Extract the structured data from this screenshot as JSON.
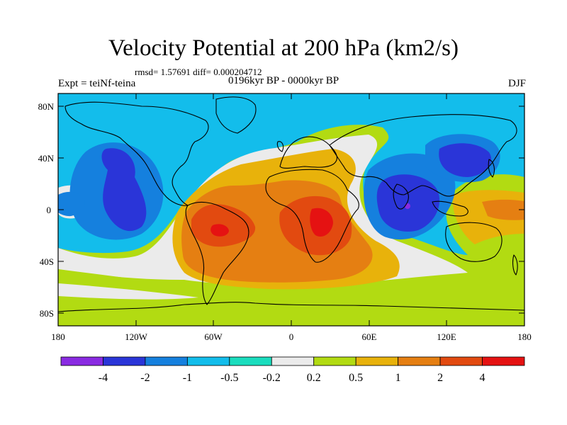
{
  "title": "Velocity Potential at 200 hPa (km2/s)",
  "stats": "rmsd= 1.57691 diff= 0.000204712",
  "experiment": "Expt = teiNf-teina",
  "period": "0196kyr BP - 0000kyr BP",
  "season": "DJF",
  "axes": {
    "lat_labels": [
      "80N",
      "40N",
      "0",
      "40S",
      "80S"
    ],
    "lon_labels": [
      "180",
      "120W",
      "60W",
      "0",
      "60E",
      "120E",
      "180"
    ]
  },
  "colorbar": {
    "labels": [
      "-4",
      "-2",
      "-1",
      "-0.5",
      "-0.2",
      "0.2",
      "0.5",
      "1",
      "2",
      "4"
    ],
    "colors": [
      "#8A2BE2",
      "#2A35D8",
      "#1580DE",
      "#13BDEB",
      "#1ADDBE",
      "#EBEBEB",
      "#B2DB12",
      "#E8B20B",
      "#E57F12",
      "#E24A10",
      "#E51212"
    ]
  },
  "colors": {
    "land_outline": "#000000",
    "background": "#ffffff",
    "frame": "#000000"
  }
}
